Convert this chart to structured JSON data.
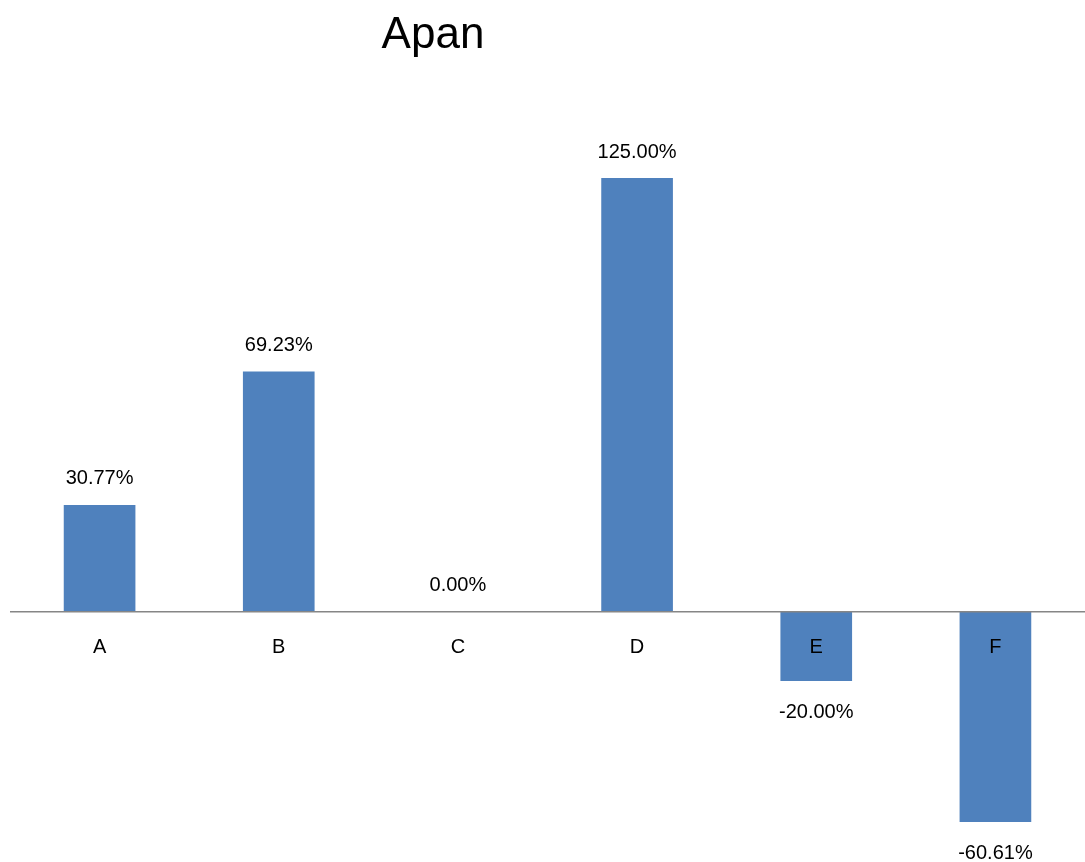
{
  "chart_data": {
    "type": "bar",
    "title": "Apan",
    "categories": [
      "A",
      "B",
      "C",
      "D",
      "E",
      "F"
    ],
    "values": [
      30.77,
      69.23,
      0,
      125,
      -20,
      -60.61
    ],
    "color": "#4f81bd",
    "value_labels": [
      "30.77%",
      "69.23%",
      "0.00%",
      "125.00%",
      "-20.00%",
      "-60.61%"
    ],
    "legend": false
  }
}
